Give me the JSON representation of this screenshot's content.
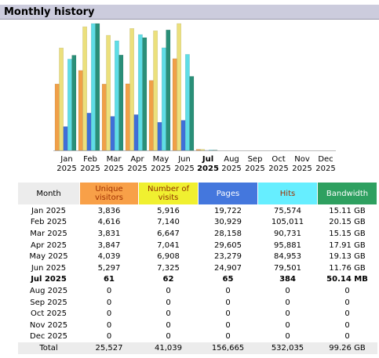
{
  "chart_data": {
    "type": "bar",
    "title": "Monthly history",
    "categories": [
      "Jan 2025",
      "Feb 2025",
      "Mar 2025",
      "Apr 2025",
      "May 2025",
      "Jun 2025",
      "Jul 2025",
      "Aug 2025",
      "Sep 2025",
      "Oct 2025",
      "Nov 2025",
      "Dec 2025"
    ],
    "highlight_index": 6,
    "series": [
      {
        "name": "Unique visitors",
        "color": "#f0a048",
        "axis": "y",
        "values": [
          3836,
          4616,
          3831,
          3847,
          4039,
          5297,
          61,
          0,
          0,
          0,
          0,
          0
        ]
      },
      {
        "name": "Number of visits",
        "color": "#ece07c",
        "axis": "y",
        "values": [
          5916,
          7140,
          6647,
          7041,
          6908,
          7325,
          62,
          0,
          0,
          0,
          0,
          0
        ]
      },
      {
        "name": "Pages",
        "color": "#3f6fd8",
        "axis": "y2",
        "values": [
          19722,
          30929,
          28158,
          29605,
          23279,
          24907,
          65,
          0,
          0,
          0,
          0,
          0
        ]
      },
      {
        "name": "Hits",
        "color": "#5fdde6",
        "axis": "y2",
        "values": [
          75574,
          105011,
          90731,
          95881,
          84953,
          79501,
          384,
          0,
          0,
          0,
          0,
          0
        ]
      },
      {
        "name": "Bandwidth",
        "color": "#2a8f78",
        "axis": "y3",
        "values": [
          15.11,
          20.15,
          15.15,
          17.91,
          19.13,
          11.76,
          0.048965,
          0,
          0,
          0,
          0,
          0
        ]
      }
    ]
  },
  "table": {
    "header": [
      "Month",
      "Unique visitors",
      "Number of visits",
      "Pages",
      "Hits",
      "Bandwidth"
    ],
    "header_colors": [
      "#ececec",
      "#f8a048",
      "#f0f030",
      "#4477dd",
      "#66eeff",
      "#2ea060"
    ],
    "rows": [
      [
        "Jan 2025",
        "3,836",
        "5,916",
        "19,722",
        "75,574",
        "15.11 GB"
      ],
      [
        "Feb 2025",
        "4,616",
        "7,140",
        "30,929",
        "105,011",
        "20.15 GB"
      ],
      [
        "Mar 2025",
        "3,831",
        "6,647",
        "28,158",
        "90,731",
        "15.15 GB"
      ],
      [
        "Apr 2025",
        "3,847",
        "7,041",
        "29,605",
        "95,881",
        "17.91 GB"
      ],
      [
        "May 2025",
        "4,039",
        "6,908",
        "23,279",
        "84,953",
        "19.13 GB"
      ],
      [
        "Jun 2025",
        "5,297",
        "7,325",
        "24,907",
        "79,501",
        "11.76 GB"
      ],
      [
        "Jul 2025",
        "61",
        "62",
        "65",
        "384",
        "50.14 MB"
      ],
      [
        "Aug 2025",
        "0",
        "0",
        "0",
        "0",
        "0"
      ],
      [
        "Sep 2025",
        "0",
        "0",
        "0",
        "0",
        "0"
      ],
      [
        "Oct 2025",
        "0",
        "0",
        "0",
        "0",
        "0"
      ],
      [
        "Nov 2025",
        "0",
        "0",
        "0",
        "0",
        "0"
      ],
      [
        "Dec 2025",
        "0",
        "0",
        "0",
        "0",
        "0"
      ]
    ],
    "total": [
      "Total",
      "25,527",
      "41,039",
      "156,665",
      "532,035",
      "99.26 GB"
    ]
  }
}
